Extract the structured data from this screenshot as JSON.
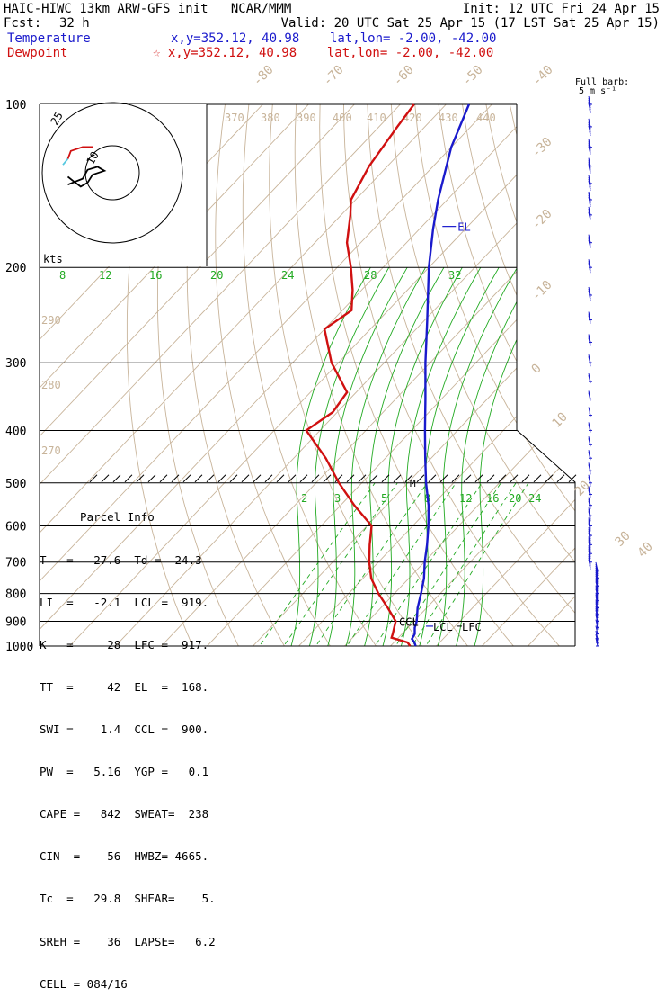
{
  "header": {
    "title": "HAIC-HIWC 13km ARW-GFS init   NCAR/MMM",
    "init": "Init: 12 UTC Fri 24 Apr 15",
    "fcst_label": "Fcst:",
    "fcst_value": "32 h",
    "valid": "Valid: 20 UTC Sat 25 Apr 15 (17 LST Sat 25 Apr 15)",
    "temp_label": "Temperature",
    "temp_loc": "x,y=352.12, 40.98    lat,lon= -2.00, -42.00",
    "dew_label": "Dewpoint",
    "dew_loc": "☆ x,y=352.12, 40.98    lat,lon= -2.00, -42.00"
  },
  "barb_legend": {
    "line1": "Full barb:",
    "line2": "5 m s⁻¹"
  },
  "hodo_kts": "kts",
  "hodo_rings": [
    "10",
    "25"
  ],
  "parcel": {
    "title": "Parcel Info",
    "rows": [
      "T   =   27.6  Td =  24.3",
      "LI  =   -2.1  LCL =  919.",
      "K   =     28  LFC =  917.",
      "TT  =     42  EL  =  168.",
      "SWI =    1.4  CCL =  900.",
      "PW  =   5.16  YGP =   0.1",
      "CAPE =   842  SWEAT=  238",
      "CIN  =   -56  HWBZ= 4665.",
      "Tc  =   29.8  SHEAR=    5.",
      "SREH =    36  LAPSE=   6.2",
      "CELL = 084/16"
    ]
  },
  "level_labels": {
    "el": "EL",
    "ccl": "CCL",
    "lcl": "LCL",
    "lfc": "LFC",
    "m": "M"
  },
  "chart_data": {
    "type": "line",
    "pressure_ticks": [
      100,
      200,
      300,
      400,
      500,
      600,
      700,
      800,
      900,
      1000
    ],
    "isotherm_labels": [
      "-80",
      "-70",
      "-60",
      "-50",
      "-40",
      "-30",
      "-20",
      "-10",
      "0",
      "10",
      "20",
      "30",
      "40"
    ],
    "theta_labels": [
      "370",
      "380",
      "390",
      "400",
      "410",
      "420",
      "430",
      "440",
      "290",
      "280",
      "270"
    ],
    "mixing_ratio_labels_upper": [
      "8",
      "12",
      "16",
      "20",
      "24",
      "28",
      "32"
    ],
    "mixing_ratio_labels_lower": [
      "2",
      "3",
      "5",
      "8",
      "12",
      "16",
      "20",
      "24"
    ],
    "series": [
      {
        "name": "Temperature",
        "color": "#1a1acc",
        "points": [
          [
            1000,
            25.5
          ],
          [
            985,
            24.5
          ],
          [
            970,
            23.2
          ],
          [
            950,
            22.8
          ],
          [
            925,
            21.5
          ],
          [
            900,
            20.6
          ],
          [
            850,
            18.0
          ],
          [
            800,
            15.8
          ],
          [
            750,
            13.3
          ],
          [
            700,
            10.1
          ],
          [
            650,
            7.0
          ],
          [
            600,
            3.4
          ],
          [
            550,
            -0.8
          ],
          [
            500,
            -6.0
          ],
          [
            450,
            -11.3
          ],
          [
            400,
            -17.1
          ],
          [
            350,
            -23.5
          ],
          [
            300,
            -31.0
          ],
          [
            250,
            -39.5
          ],
          [
            200,
            -50.0
          ],
          [
            170,
            -57.0
          ],
          [
            150,
            -62.0
          ],
          [
            120,
            -70.0
          ],
          [
            100,
            -75.0
          ]
        ]
      },
      {
        "name": "Dewpoint",
        "color": "#d01010",
        "points": [
          [
            1000,
            24.3
          ],
          [
            985,
            23.0
          ],
          [
            965,
            18.5
          ],
          [
            950,
            18.0
          ],
          [
            925,
            17.0
          ],
          [
            900,
            16.0
          ],
          [
            850,
            11.5
          ],
          [
            800,
            6.5
          ],
          [
            750,
            1.8
          ],
          [
            700,
            -2.0
          ],
          [
            650,
            -5.5
          ],
          [
            600,
            -9.0
          ],
          [
            550,
            -17.0
          ],
          [
            500,
            -25.0
          ],
          [
            450,
            -33.0
          ],
          [
            400,
            -43.0
          ],
          [
            370,
            -41.0
          ],
          [
            340,
            -42.0
          ],
          [
            300,
            -51.5
          ],
          [
            260,
            -60.0
          ],
          [
            240,
            -58.0
          ],
          [
            220,
            -62.0
          ],
          [
            200,
            -67.0
          ],
          [
            180,
            -73.0
          ],
          [
            160,
            -78.0
          ],
          [
            150,
            -81.0
          ],
          [
            130,
            -84.0
          ],
          [
            110,
            -86.0
          ],
          [
            100,
            -87.0
          ]
        ]
      }
    ],
    "wind_barbs": [
      [
        1000,
        2
      ],
      [
        985,
        3
      ],
      [
        970,
        3
      ],
      [
        950,
        2
      ],
      [
        925,
        3
      ],
      [
        900,
        5
      ],
      [
        875,
        6
      ],
      [
        850,
        6
      ],
      [
        825,
        6
      ],
      [
        800,
        7
      ],
      [
        775,
        7
      ],
      [
        750,
        8
      ],
      [
        725,
        8
      ],
      [
        700,
        9
      ],
      [
        675,
        8
      ],
      [
        650,
        9
      ],
      [
        625,
        9
      ],
      [
        600,
        8
      ],
      [
        575,
        7
      ],
      [
        550,
        6
      ],
      [
        525,
        6
      ],
      [
        500,
        5
      ],
      [
        475,
        5
      ],
      [
        450,
        4
      ],
      [
        425,
        4
      ],
      [
        400,
        4
      ],
      [
        375,
        3
      ],
      [
        350,
        4
      ],
      [
        325,
        4
      ],
      [
        300,
        5
      ],
      [
        275,
        6
      ],
      [
        250,
        6
      ],
      [
        225,
        7
      ],
      [
        200,
        7
      ],
      [
        180,
        8
      ],
      [
        160,
        8
      ],
      [
        150,
        9
      ],
      [
        140,
        9
      ],
      [
        130,
        10
      ],
      [
        120,
        10
      ],
      [
        110,
        11
      ],
      [
        100,
        11
      ]
    ],
    "hodograph": {
      "black": [
        [
          -45,
          12
        ],
        [
          -30,
          6
        ],
        [
          -25,
          -3
        ],
        [
          -15,
          -6
        ],
        [
          -8,
          -2
        ],
        [
          -20,
          2
        ],
        [
          -25,
          10
        ],
        [
          -32,
          14
        ],
        [
          -40,
          8
        ],
        [
          -45,
          4
        ]
      ],
      "red": [
        [
          -45,
          -14
        ],
        [
          -42,
          -22
        ],
        [
          -30,
          -26
        ],
        [
          -20,
          -26
        ]
      ],
      "cyan": [
        [
          -50,
          -8
        ],
        [
          -45,
          -14
        ]
      ]
    }
  }
}
